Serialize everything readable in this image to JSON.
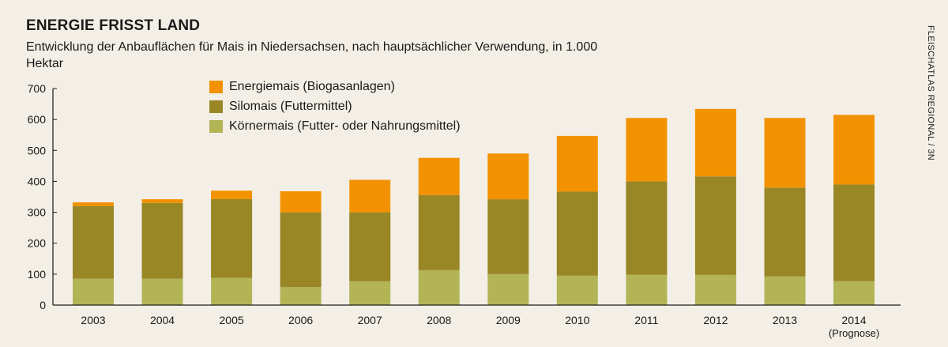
{
  "header": {
    "title": "ENERGIE FRISST LAND",
    "subtitle": "Entwicklung der Anbauflächen für Mais in Niedersachsen, nach hauptsächlicher Verwendung, in 1.000 Hektar",
    "source": "FLEISCHATLAS REGIONAL / 3N"
  },
  "legend": [
    {
      "label": "Energiemais (Biogasanlagen)",
      "color": "#f39200"
    },
    {
      "label": "Silomais (Futtermittel)",
      "color": "#998625"
    },
    {
      "label": "Körnermais (Futter- oder Nahrungsmittel)",
      "color": "#b2b456"
    }
  ],
  "colors": {
    "energiemais": "#f39200",
    "silomais": "#998625",
    "koernermais": "#b2b456",
    "axis": "#1a1a1a",
    "background": "#f3efe6"
  },
  "chart_data": {
    "type": "bar",
    "stacked": true,
    "categories": [
      "2003",
      "2004",
      "2005",
      "2006",
      "2007",
      "2008",
      "2009",
      "2010",
      "2011",
      "2012",
      "2013",
      "2014"
    ],
    "category_sublabels": [
      "",
      "",
      "",
      "",
      "",
      "",
      "",
      "",
      "",
      "",
      "",
      "(Prognose)"
    ],
    "series": [
      {
        "name": "Körnermais (Futter- oder Nahrungsmittel)",
        "values": [
          85,
          85,
          88,
          58,
          77,
          113,
          100,
          95,
          98,
          98,
          93,
          77
        ]
      },
      {
        "name": "Silomais (Futtermittel)",
        "values": [
          235,
          245,
          255,
          242,
          223,
          243,
          242,
          272,
          302,
          318,
          287,
          313
        ]
      },
      {
        "name": "Energiemais (Biogasanlagen)",
        "values": [
          12,
          12,
          27,
          68,
          105,
          120,
          148,
          180,
          205,
          218,
          225,
          225
        ]
      }
    ],
    "yticks": [
      0,
      100,
      200,
      300,
      400,
      500,
      600,
      700
    ],
    "ylim": [
      0,
      700
    ],
    "xlabel": "",
    "ylabel": "",
    "grid": false,
    "legend_position": "top-left"
  }
}
